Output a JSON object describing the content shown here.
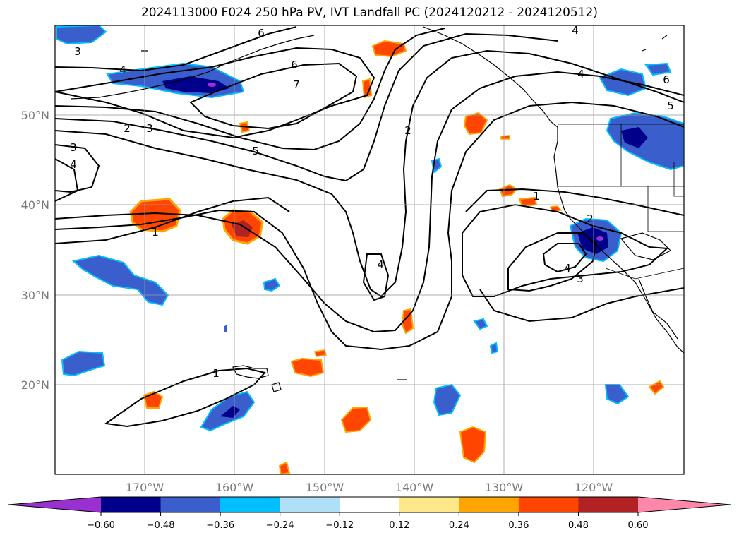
{
  "title": "2024113000 F024 250 hPa PV, IVT Landfall PC (2024120212 - 2024120512)",
  "map": {
    "lon_labels": [
      "170°W",
      "160°W",
      "150°W",
      "140°W",
      "130°W",
      "120°W"
    ],
    "lat_labels": [
      "50°N",
      "40°N",
      "30°N",
      "20°N"
    ],
    "gridlines": true
  },
  "contour_labels": [
    "3",
    "6",
    "4",
    "4",
    "7",
    "6",
    "4",
    "6",
    "5",
    "2",
    "3",
    "5",
    "3",
    "4",
    "2",
    "1",
    "1",
    "2",
    "4",
    "3",
    "4",
    "1"
  ],
  "colorbar": {
    "ticks": [
      "−0.60",
      "−0.48",
      "−0.36",
      "−0.24",
      "−0.12",
      "0.12",
      "0.24",
      "0.36",
      "0.48",
      "0.60"
    ],
    "colors": [
      "#9b30d0",
      "#00008b",
      "#3a5fcd",
      "#00bfff",
      "#b0e0f8",
      "#ffffff",
      "#ffe88a",
      "#ffa500",
      "#ff4500",
      "#b22222",
      "#ff88aa"
    ],
    "extend": "both"
  }
}
